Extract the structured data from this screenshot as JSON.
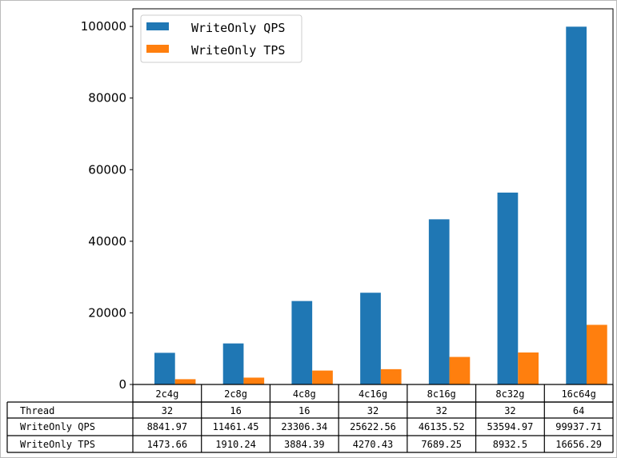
{
  "chart_data": {
    "type": "bar",
    "categories": [
      "2c4g",
      "2c8g",
      "4c8g",
      "4c16g",
      "8c16g",
      "8c32g",
      "16c64g"
    ],
    "series": [
      {
        "name": "WriteOnly QPS",
        "color": "#1f77b4",
        "values": [
          8841.97,
          11461.45,
          23306.34,
          25622.56,
          46135.52,
          53594.97,
          99937.71
        ]
      },
      {
        "name": "WriteOnly TPS",
        "color": "#ff7f0e",
        "values": [
          1473.66,
          1910.24,
          3884.39,
          4270.43,
          7689.25,
          8932.5,
          16656.29
        ]
      }
    ],
    "yticks": [
      "0",
      "20000",
      "40000",
      "60000",
      "80000",
      "100000"
    ],
    "ylim": [
      0,
      104935
    ],
    "legend_position": "top-left",
    "table": {
      "rows": [
        {
          "label": "Thread",
          "values": [
            "32",
            "16",
            "16",
            "32",
            "32",
            "32",
            "64"
          ]
        },
        {
          "label": "WriteOnly QPS",
          "values": [
            "8841.97",
            "11461.45",
            "23306.34",
            "25622.56",
            "46135.52",
            "53594.97",
            "99937.71"
          ]
        },
        {
          "label": "WriteOnly TPS",
          "values": [
            "1473.66",
            "1910.24",
            "3884.39",
            "4270.43",
            "7689.25",
            "8932.5",
            "16656.29"
          ]
        }
      ]
    }
  }
}
